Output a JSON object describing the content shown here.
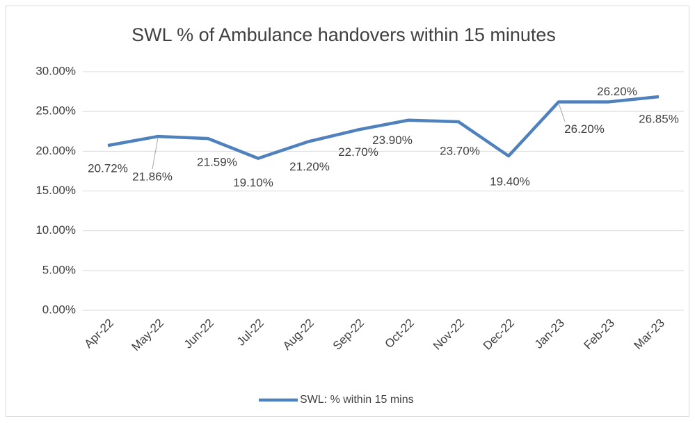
{
  "chart_data": {
    "type": "line",
    "title": "SWL % of Ambulance handovers within 15 minutes",
    "categories": [
      "Apr-22",
      "May-22",
      "Jun-22",
      "Jul-22",
      "Aug-22",
      "Sep-22",
      "Oct-22",
      "Nov-22",
      "Dec-22",
      "Jan-23",
      "Feb-23",
      "Mar-23"
    ],
    "series": [
      {
        "name": "SWL: % within 15 mins",
        "color": "#4f81bd",
        "values": [
          20.72,
          21.86,
          21.59,
          19.1,
          21.2,
          22.7,
          23.9,
          23.7,
          19.4,
          26.2,
          26.2,
          26.85
        ],
        "value_labels": [
          "20.72%",
          "21.86%",
          "21.59%",
          "19.10%",
          "21.20%",
          "22.70%",
          "23.90%",
          "23.70%",
          "19.40%",
          "26.20%",
          "26.20%",
          "26.85%"
        ]
      }
    ],
    "ylim": [
      0,
      30
    ],
    "yticks": [
      {
        "value": 0,
        "label": "0.00%"
      },
      {
        "value": 5,
        "label": "5.00%"
      },
      {
        "value": 10,
        "label": "10.00%"
      },
      {
        "value": 15,
        "label": "15.00%"
      },
      {
        "value": 20,
        "label": "20.00%"
      },
      {
        "value": 25,
        "label": "25.00%"
      },
      {
        "value": 30,
        "label": "30.00%"
      }
    ],
    "grid": true,
    "legend": "bottom"
  }
}
